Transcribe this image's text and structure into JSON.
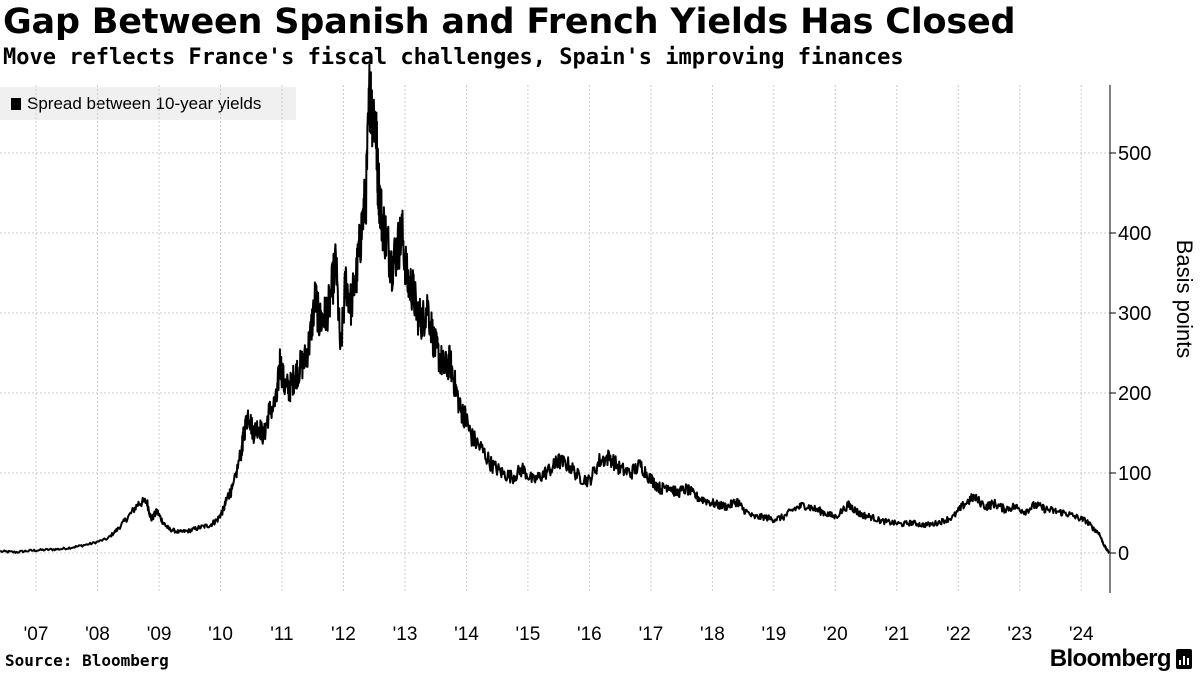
{
  "header": {
    "title": "Gap Between Spanish and French Yields Has Closed",
    "subtitle": "Move reflects France's fiscal challenges, Spain's improving finances"
  },
  "footer": {
    "source": "Source: Bloomberg",
    "brand": "Bloomberg"
  },
  "colors": {
    "line": "#000000",
    "grid": "#cccccc",
    "legend_bg": "#f0f0f0"
  },
  "chart_data": {
    "type": "line",
    "xlabel": "",
    "ylabel": "Basis points",
    "y_axis_position": "right",
    "xlim": [
      "2006-06-01",
      "2024-06-20"
    ],
    "ylim": [
      -50,
      585
    ],
    "yticks": [
      0,
      100,
      200,
      300,
      400,
      500
    ],
    "ytick_labels": [
      "0",
      "100",
      "200",
      "300",
      "400",
      "500"
    ],
    "xticks": [
      "2007-01-01",
      "2008-01-01",
      "2009-01-01",
      "2010-01-01",
      "2011-01-01",
      "2012-01-01",
      "2013-01-01",
      "2014-01-01",
      "2015-01-01",
      "2016-01-01",
      "2017-01-01",
      "2018-01-01",
      "2019-01-01",
      "2020-01-01",
      "2021-01-01",
      "2022-01-01",
      "2023-01-01",
      "2024-01-01"
    ],
    "xtick_labels": [
      "'07",
      "'08",
      "'09",
      "'10",
      "'11",
      "'12",
      "'13",
      "'14",
      "'15",
      "'16",
      "'17",
      "'18",
      "'19",
      "'20",
      "'21",
      "'22",
      "'23",
      "'24"
    ],
    "grid": true,
    "legend_position": "top-left",
    "series": [
      {
        "name": "Spread between 10-year yields",
        "x": [
          "2006-06-01",
          "2006-09-01",
          "2006-12-01",
          "2007-03-01",
          "2007-06-01",
          "2007-09-01",
          "2007-12-01",
          "2008-03-01",
          "2008-05-01",
          "2008-07-01",
          "2008-09-01",
          "2008-10-20",
          "2008-11-15",
          "2008-12-20",
          "2009-01-25",
          "2009-03-01",
          "2009-05-01",
          "2009-07-01",
          "2009-09-01",
          "2009-11-01",
          "2009-12-15",
          "2010-01-20",
          "2010-02-15",
          "2010-03-15",
          "2010-05-07",
          "2010-05-20",
          "2010-06-15",
          "2010-07-15",
          "2010-08-15",
          "2010-09-15",
          "2010-10-15",
          "2010-11-30",
          "2010-12-20",
          "2011-01-15",
          "2011-02-15",
          "2011-03-15",
          "2011-04-10",
          "2011-05-15",
          "2011-06-15",
          "2011-07-18",
          "2011-08-10",
          "2011-09-10",
          "2011-10-10",
          "2011-11-17",
          "2011-12-15",
          "2012-01-15",
          "2012-02-15",
          "2012-03-20",
          "2012-04-15",
          "2012-05-15",
          "2012-06-05",
          "2012-06-15",
          "2012-07-10",
          "2012-07-24",
          "2012-08-15",
          "2012-09-15",
          "2012-10-15",
          "2012-11-15",
          "2012-12-15",
          "2013-01-15",
          "2013-02-15",
          "2013-03-15",
          "2013-04-15",
          "2013-05-15",
          "2013-06-25",
          "2013-07-25",
          "2013-08-25",
          "2013-09-25",
          "2013-10-25",
          "2013-11-25",
          "2013-12-25",
          "2014-02-01",
          "2014-04-01",
          "2014-06-01",
          "2014-08-01",
          "2014-10-01",
          "2014-12-01",
          "2015-02-01",
          "2015-04-01",
          "2015-06-01",
          "2015-07-01",
          "2015-09-01",
          "2015-11-01",
          "2016-01-01",
          "2016-03-01",
          "2016-05-01",
          "2016-07-01",
          "2016-09-01",
          "2016-11-01",
          "2017-01-01",
          "2017-03-01",
          "2017-04-15",
          "2017-06-01",
          "2017-08-01",
          "2017-10-01",
          "2017-12-01",
          "2018-02-01",
          "2018-04-01",
          "2018-05-29",
          "2018-07-01",
          "2018-09-01",
          "2018-11-01",
          "2019-01-01",
          "2019-03-01",
          "2019-05-01",
          "2019-07-01",
          "2019-09-01",
          "2019-11-01",
          "2020-01-01",
          "2020-03-18",
          "2020-04-20",
          "2020-06-01",
          "2020-08-01",
          "2020-10-01",
          "2020-12-01",
          "2021-02-01",
          "2021-04-01",
          "2021-06-01",
          "2021-08-01",
          "2021-10-01",
          "2021-12-01",
          "2022-02-01",
          "2022-04-01",
          "2022-06-14",
          "2022-08-01",
          "2022-10-01",
          "2022-12-01",
          "2023-02-01",
          "2023-04-01",
          "2023-06-01",
          "2023-08-01",
          "2023-10-01",
          "2023-12-01",
          "2024-02-01",
          "2024-03-15",
          "2024-04-15",
          "2024-05-15",
          "2024-06-14"
        ],
        "y": [
          2,
          1,
          3,
          4,
          5,
          8,
          12,
          18,
          30,
          45,
          62,
          65,
          42,
          52,
          38,
          30,
          26,
          28,
          32,
          35,
          42,
          55,
          72,
          80,
          130,
          150,
          175,
          150,
          160,
          145,
          175,
          190,
          240,
          210,
          205,
          220,
          230,
          240,
          265,
          320,
          290,
          295,
          310,
          365,
          250,
          340,
          310,
          350,
          400,
          450,
          580,
          560,
          540,
          470,
          420,
          390,
          360,
          380,
          400,
          340,
          330,
          300,
          290,
          310,
          260,
          245,
          230,
          240,
          210,
          180,
          170,
          145,
          130,
          110,
          100,
          95,
          105,
          90,
          98,
          108,
          115,
          110,
          95,
          90,
          115,
          120,
          105,
          100,
          110,
          92,
          80,
          85,
          75,
          80,
          70,
          65,
          60,
          58,
          65,
          55,
          45,
          45,
          42,
          45,
          55,
          60,
          55,
          50,
          45,
          60,
          55,
          48,
          45,
          40,
          38,
          36,
          38,
          35,
          36,
          40,
          45,
          60,
          70,
          58,
          62,
          55,
          58,
          52,
          60,
          55,
          52,
          50,
          45,
          40,
          30,
          25,
          10,
          0
        ]
      }
    ]
  }
}
